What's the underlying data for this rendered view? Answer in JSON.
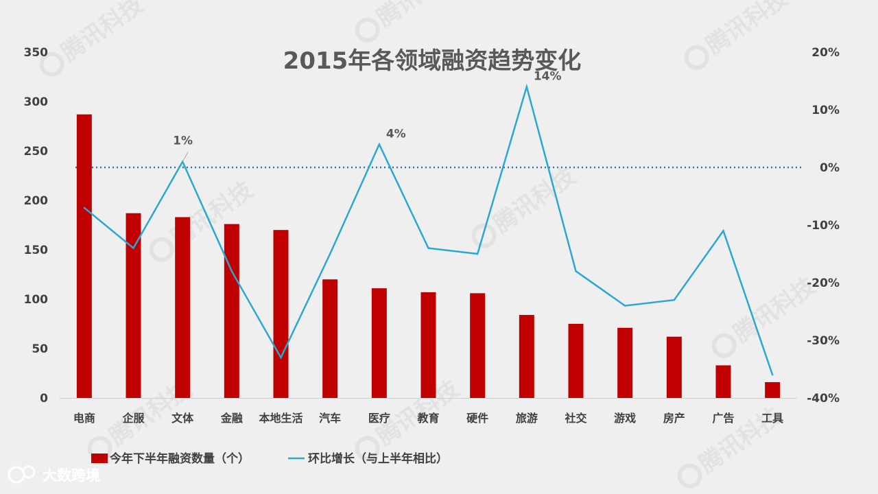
{
  "chart_data": {
    "type": "bar",
    "title": "2015年各领域融资趋势变化",
    "categories": [
      "电商",
      "企服",
      "文体",
      "金融",
      "本地生活",
      "汽车",
      "医疗",
      "教育",
      "硬件",
      "旅游",
      "社交",
      "游戏",
      "房产",
      "广告",
      "工具"
    ],
    "series": [
      {
        "name": "今年下半年融资数量（个）",
        "type": "bar",
        "axis": "left",
        "color": "#c00000",
        "values": [
          287,
          187,
          183,
          176,
          170,
          120,
          111,
          107,
          106,
          84,
          75,
          71,
          62,
          33,
          16
        ]
      },
      {
        "name": "环比增长（与上半年相比）",
        "type": "line",
        "axis": "right",
        "color": "#2aa7d3",
        "values": [
          -7,
          -14,
          1,
          -18,
          -33,
          -15,
          4,
          -14,
          -15,
          14,
          -18,
          -24,
          -23,
          -11,
          -36
        ]
      }
    ],
    "y_left": {
      "min": 0,
      "max": 350,
      "ticks": [
        0,
        50,
        100,
        150,
        200,
        250,
        300,
        350
      ]
    },
    "y_right": {
      "min": -40,
      "max": 20,
      "ticks": [
        "-40%",
        "-30%",
        "-20%",
        "-10%",
        "0%",
        "10%",
        "20%"
      ],
      "tick_values": [
        -40,
        -30,
        -20,
        -10,
        0,
        10,
        20
      ]
    },
    "reference_line": {
      "axis": "right",
      "value": 0,
      "style": "dotted",
      "color": "#2e75b6"
    },
    "data_labels": [
      {
        "series": 1,
        "index": 2,
        "text": "1%"
      },
      {
        "series": 1,
        "index": 6,
        "text": "4%"
      },
      {
        "series": 1,
        "index": 9,
        "text": "14%"
      }
    ],
    "legend_position": "bottom-left",
    "grid": false
  },
  "brand": {
    "logo_text": "大数跨境",
    "watermark_text": "腾讯科技"
  },
  "colors": {
    "background": "#efefef",
    "bar": "#c00000",
    "line": "#2aa7d3"
  }
}
